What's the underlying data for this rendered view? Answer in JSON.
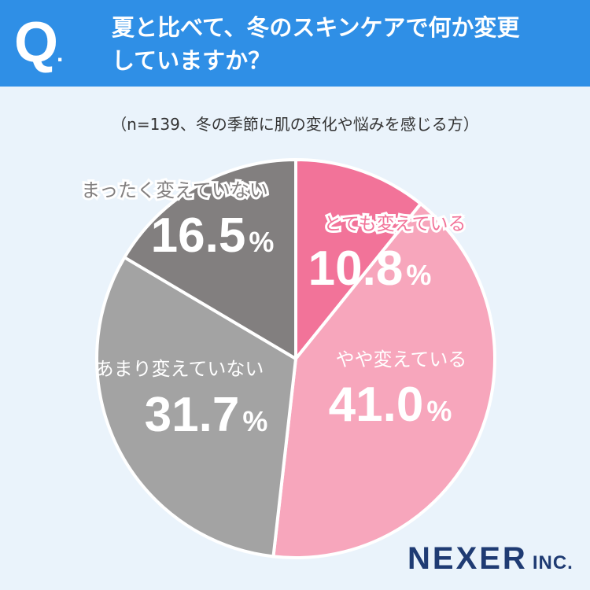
{
  "header": {
    "q_mark": "Q",
    "q_dot": ".",
    "question_line1": "夏と比べて、冬のスキンケアで何か変更",
    "question_line2": "していますか？"
  },
  "note": "（n=139、冬の季節に肌の変化や悩みを感じる方）",
  "brand": {
    "name": "NEXER",
    "suffix": "INC."
  },
  "colors": {
    "header_bg": "#2f8fe6",
    "slice_1": "#f27399",
    "slice_2": "#f7a6bc",
    "slice_3": "#a3a3a3",
    "slice_4": "#827f7f",
    "label_pink": "#f27399",
    "label_gray": "#827f7f"
  },
  "chart_data": {
    "type": "pie",
    "unit": "%",
    "slices": [
      {
        "label": "とても変えている",
        "value": 10.8,
        "value_text": "10.8"
      },
      {
        "label": "やや変えている",
        "value": 41.0,
        "value_text": "41.0"
      },
      {
        "label": "あまり変えていない",
        "value": 31.7,
        "value_text": "31.7"
      },
      {
        "label": "まったく変えていない",
        "value": 16.5,
        "value_text": "16.5"
      }
    ],
    "start_angle": "12 o'clock",
    "direction": "clockwise",
    "legend": "none"
  }
}
